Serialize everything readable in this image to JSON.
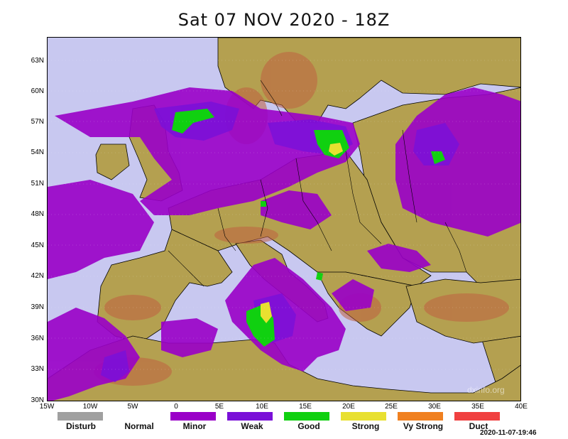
{
  "title": "Sat 07 NOV 2020 - 18Z",
  "lat_labels": [
    "63N",
    "60N",
    "57N",
    "54N",
    "51N",
    "48N",
    "45N",
    "42N",
    "39N",
    "36N",
    "33N",
    "30N"
  ],
  "lon_labels": [
    "15W",
    "10W",
    "5W",
    "0",
    "5E",
    "10E",
    "15E",
    "20E",
    "25E",
    "30E",
    "35E",
    "40E"
  ],
  "legend": [
    {
      "label": "Disturb",
      "color": "#a0a0a0"
    },
    {
      "label": "Normal",
      "color": ""
    },
    {
      "label": "Minor",
      "color": "#9a00c8"
    },
    {
      "label": "Weak",
      "color": "#7a10d8"
    },
    {
      "label": "Good",
      "color": "#10d010"
    },
    {
      "label": "Strong",
      "color": "#e8e030"
    },
    {
      "label": "Vy Strong",
      "color": "#f08020"
    },
    {
      "label": "Duct",
      "color": "#f04040"
    }
  ],
  "watermark": "dxinfo.org",
  "timestamp": "2020-11-07-19:46",
  "colors": {
    "sea": "#c8c8f0",
    "land": "#b4a050",
    "highland": "#c06040",
    "minor": "#9a00c8",
    "weak": "#7a10d8",
    "good": "#10d010",
    "strong": "#e8e030"
  }
}
